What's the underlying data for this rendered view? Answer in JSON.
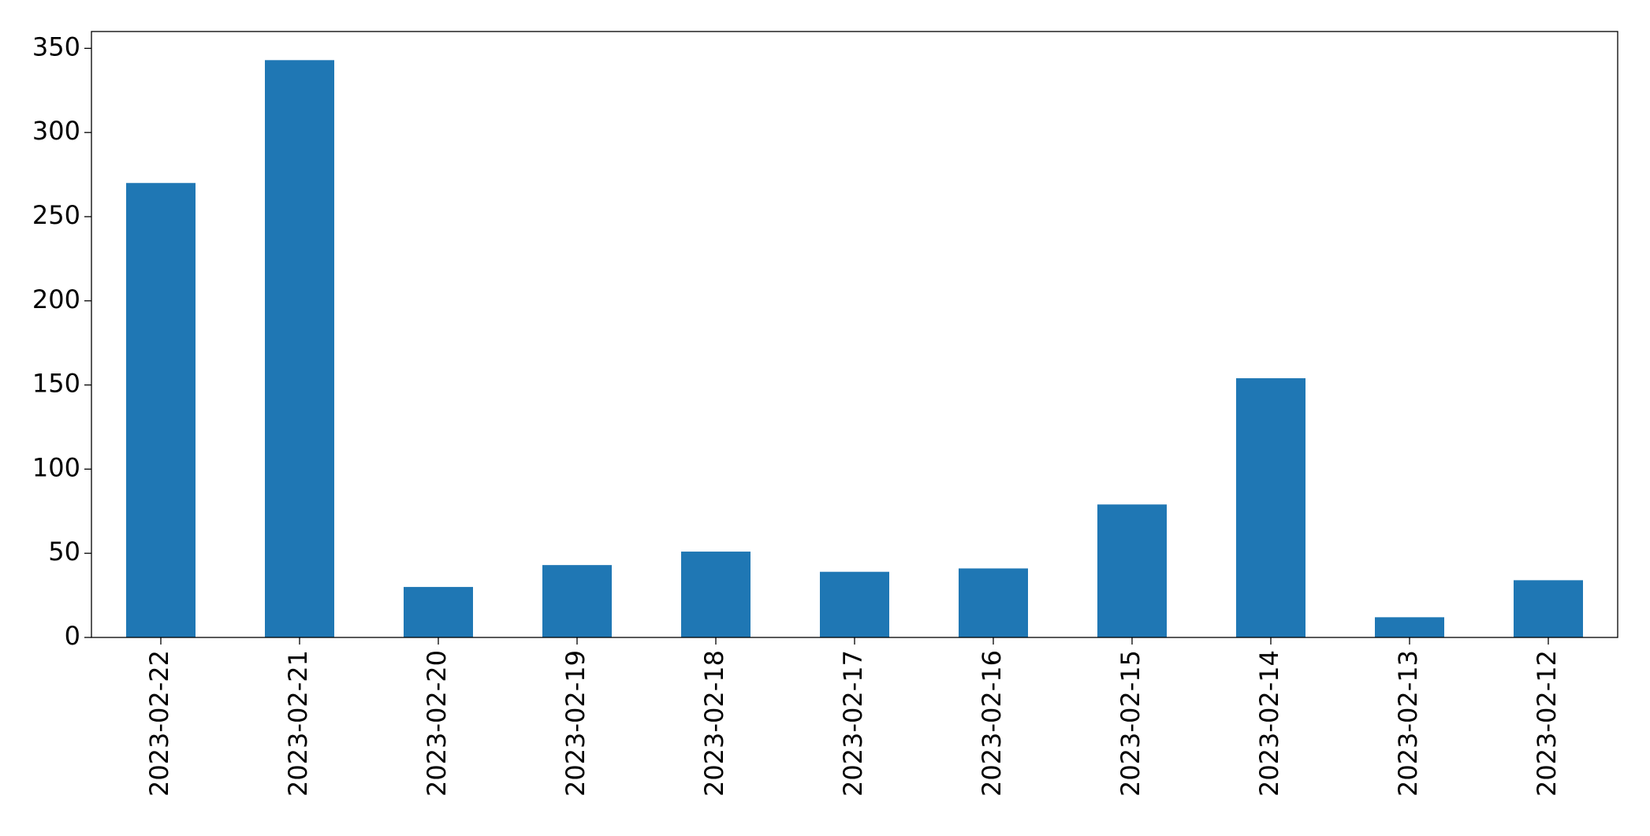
{
  "chart_data": {
    "type": "bar",
    "categories": [
      "2023-02-22",
      "2023-02-21",
      "2023-02-20",
      "2023-02-19",
      "2023-02-18",
      "2023-02-17",
      "2023-02-16",
      "2023-02-15",
      "2023-02-14",
      "2023-02-13",
      "2023-02-12"
    ],
    "values": [
      270,
      343,
      30,
      43,
      51,
      39,
      41,
      79,
      154,
      12,
      34
    ],
    "color": "#1f77b4",
    "ylim": [
      0,
      360
    ],
    "yticks": [
      0,
      50,
      100,
      150,
      200,
      250,
      300,
      350
    ],
    "grid": false
  }
}
